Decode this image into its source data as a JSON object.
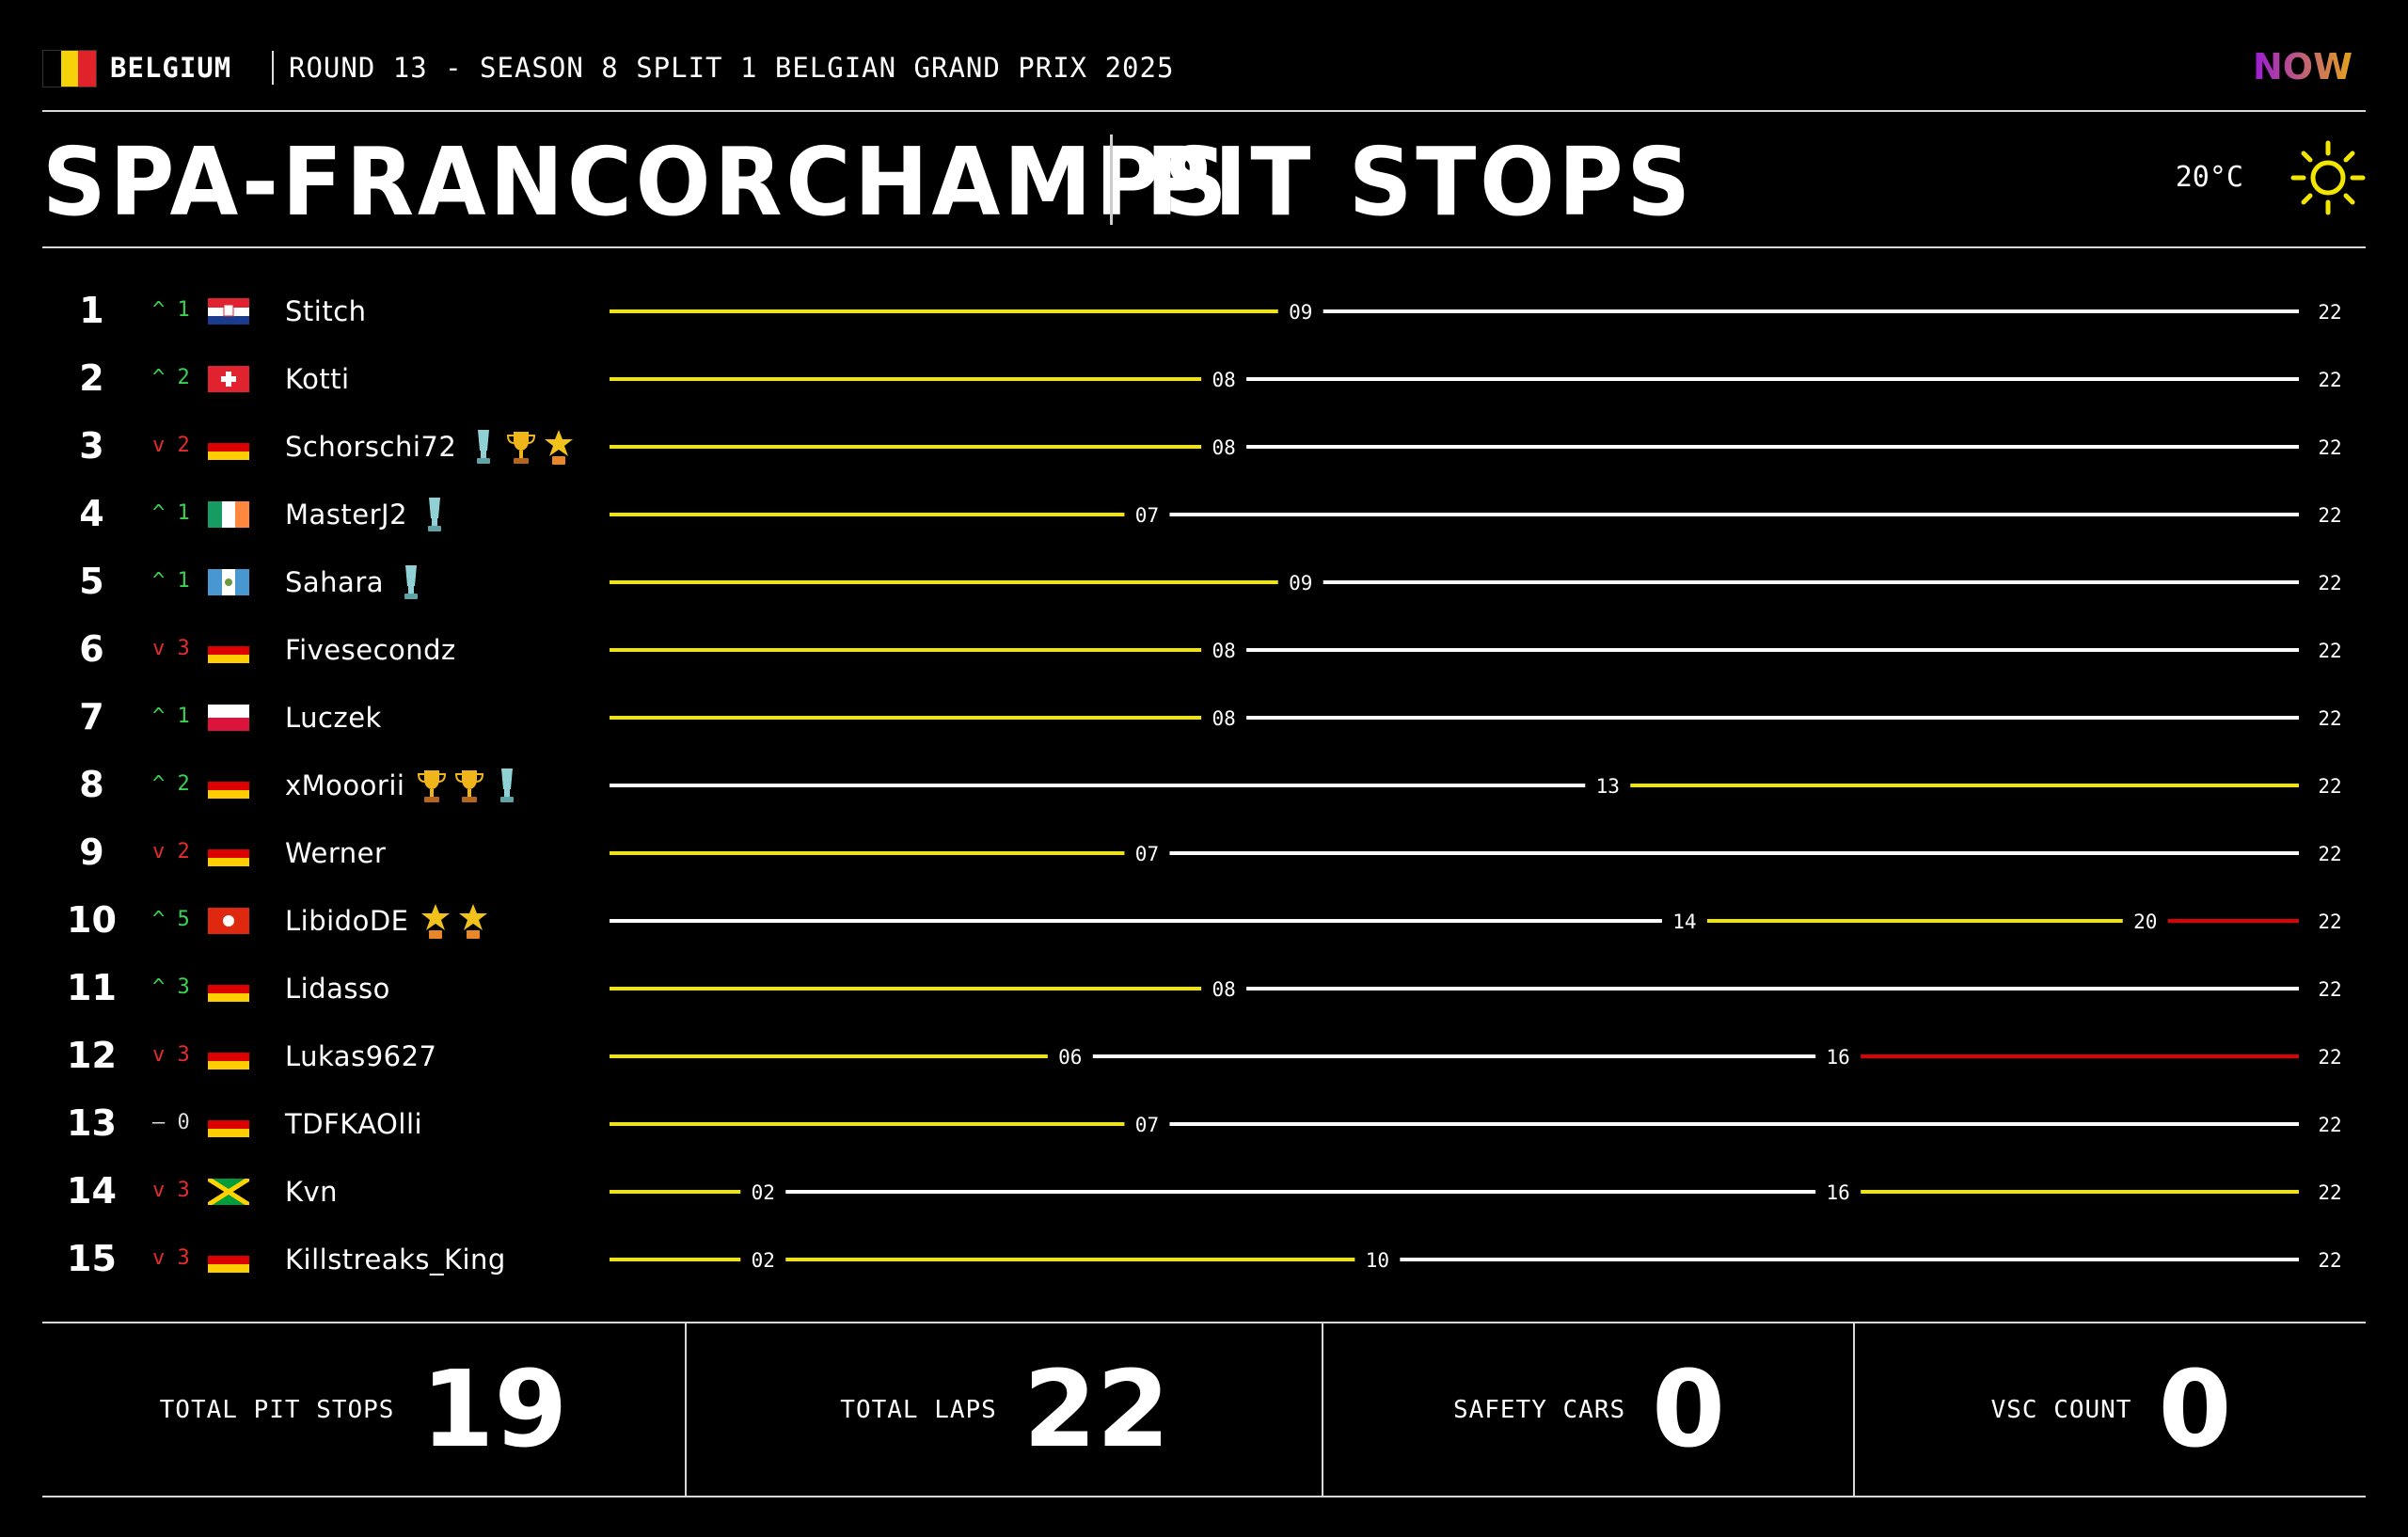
{
  "header": {
    "country": "BELGIUM",
    "round_info": "ROUND 13 - SEASON 8 SPLIT 1 BELGIAN GRAND PRIX 2025",
    "logo_text": "NOW",
    "title_track": "SPA-FRANCORCHAMPS",
    "title_section": "PIT STOPS",
    "temperature": "20°C",
    "weather_icon": "sun-icon"
  },
  "colors": {
    "stint_a": "#f2e600",
    "stint_b": "#ffffff",
    "stint_c": "#e00000",
    "position_up": "#39d353",
    "position_down": "#e52b2b"
  },
  "total_laps_axis": 22,
  "drivers": [
    {
      "pos": "1",
      "change": "^ 1",
      "dir": "up",
      "flag": "hr",
      "name": "Stitch",
      "trophies": [],
      "pits": [
        "09"
      ],
      "stints": [
        "yellow",
        "white"
      ],
      "end": "22"
    },
    {
      "pos": "2",
      "change": "^ 2",
      "dir": "up",
      "flag": "ch",
      "name": "Kotti",
      "trophies": [],
      "pits": [
        "08"
      ],
      "stints": [
        "yellow",
        "white"
      ],
      "end": "22"
    },
    {
      "pos": "3",
      "change": "v 2",
      "dir": "down",
      "flag": "de",
      "name": "Schorschi72",
      "trophies": [
        "silver",
        "gold",
        "star"
      ],
      "pits": [
        "08"
      ],
      "stints": [
        "yellow",
        "white"
      ],
      "end": "22"
    },
    {
      "pos": "4",
      "change": "^ 1",
      "dir": "up",
      "flag": "ie",
      "name": "MasterJ2",
      "trophies": [
        "silver"
      ],
      "pits": [
        "07"
      ],
      "stints": [
        "yellow",
        "white"
      ],
      "end": "22"
    },
    {
      "pos": "5",
      "change": "^ 1",
      "dir": "up",
      "flag": "gt",
      "name": "Sahara",
      "trophies": [
        "silver"
      ],
      "pits": [
        "09"
      ],
      "stints": [
        "yellow",
        "white"
      ],
      "end": "22"
    },
    {
      "pos": "6",
      "change": "v 3",
      "dir": "down",
      "flag": "de",
      "name": "Fivesecondz",
      "trophies": [],
      "pits": [
        "08"
      ],
      "stints": [
        "yellow",
        "white"
      ],
      "end": "22"
    },
    {
      "pos": "7",
      "change": "^ 1",
      "dir": "up",
      "flag": "pl",
      "name": "Luczek",
      "trophies": [],
      "pits": [
        "08"
      ],
      "stints": [
        "yellow",
        "white"
      ],
      "end": "22"
    },
    {
      "pos": "8",
      "change": "^ 2",
      "dir": "up",
      "flag": "de",
      "name": "xMooorii",
      "trophies": [
        "gold",
        "gold",
        "silver"
      ],
      "pits": [
        "13"
      ],
      "stints": [
        "white",
        "yellow"
      ],
      "end": "22"
    },
    {
      "pos": "9",
      "change": "v 2",
      "dir": "down",
      "flag": "de",
      "name": "Werner",
      "trophies": [],
      "pits": [
        "07"
      ],
      "stints": [
        "yellow",
        "white"
      ],
      "end": "22"
    },
    {
      "pos": "10",
      "change": "^ 5",
      "dir": "up",
      "flag": "hk",
      "name": "LibidoDE",
      "trophies": [
        "star",
        "star"
      ],
      "pits": [
        "14",
        "20"
      ],
      "stints": [
        "white",
        "yellow",
        "red"
      ],
      "end": "22"
    },
    {
      "pos": "11",
      "change": "^ 3",
      "dir": "up",
      "flag": "de",
      "name": "Lidasso",
      "trophies": [],
      "pits": [
        "08"
      ],
      "stints": [
        "yellow",
        "white"
      ],
      "end": "22"
    },
    {
      "pos": "12",
      "change": "v 3",
      "dir": "down",
      "flag": "de",
      "name": "Lukas9627",
      "trophies": [],
      "pits": [
        "06",
        "16"
      ],
      "stints": [
        "yellow",
        "white",
        "red"
      ],
      "end": "22"
    },
    {
      "pos": "13",
      "change": "– 0",
      "dir": "same",
      "flag": "de",
      "name": "TDFKAOlli",
      "trophies": [],
      "pits": [
        "07"
      ],
      "stints": [
        "yellow",
        "white"
      ],
      "end": "22"
    },
    {
      "pos": "14",
      "change": "v 3",
      "dir": "down",
      "flag": "jm",
      "name": "Kvn",
      "trophies": [],
      "pits": [
        "02",
        "16"
      ],
      "stints": [
        "yellow",
        "white",
        "yellow"
      ],
      "end": "22"
    },
    {
      "pos": "15",
      "change": "v 3",
      "dir": "down",
      "flag": "de",
      "name": "Killstreaks_King",
      "trophies": [],
      "pits": [
        "02",
        "10"
      ],
      "stints": [
        "yellow",
        "yellow",
        "white"
      ],
      "end": "22"
    }
  ],
  "stats": [
    {
      "label": "TOTAL PIT STOPS",
      "value": "19"
    },
    {
      "label": "TOTAL LAPS",
      "value": "22"
    },
    {
      "label": "SAFETY CARS",
      "value": "0"
    },
    {
      "label": "VSC COUNT",
      "value": "0"
    }
  ]
}
